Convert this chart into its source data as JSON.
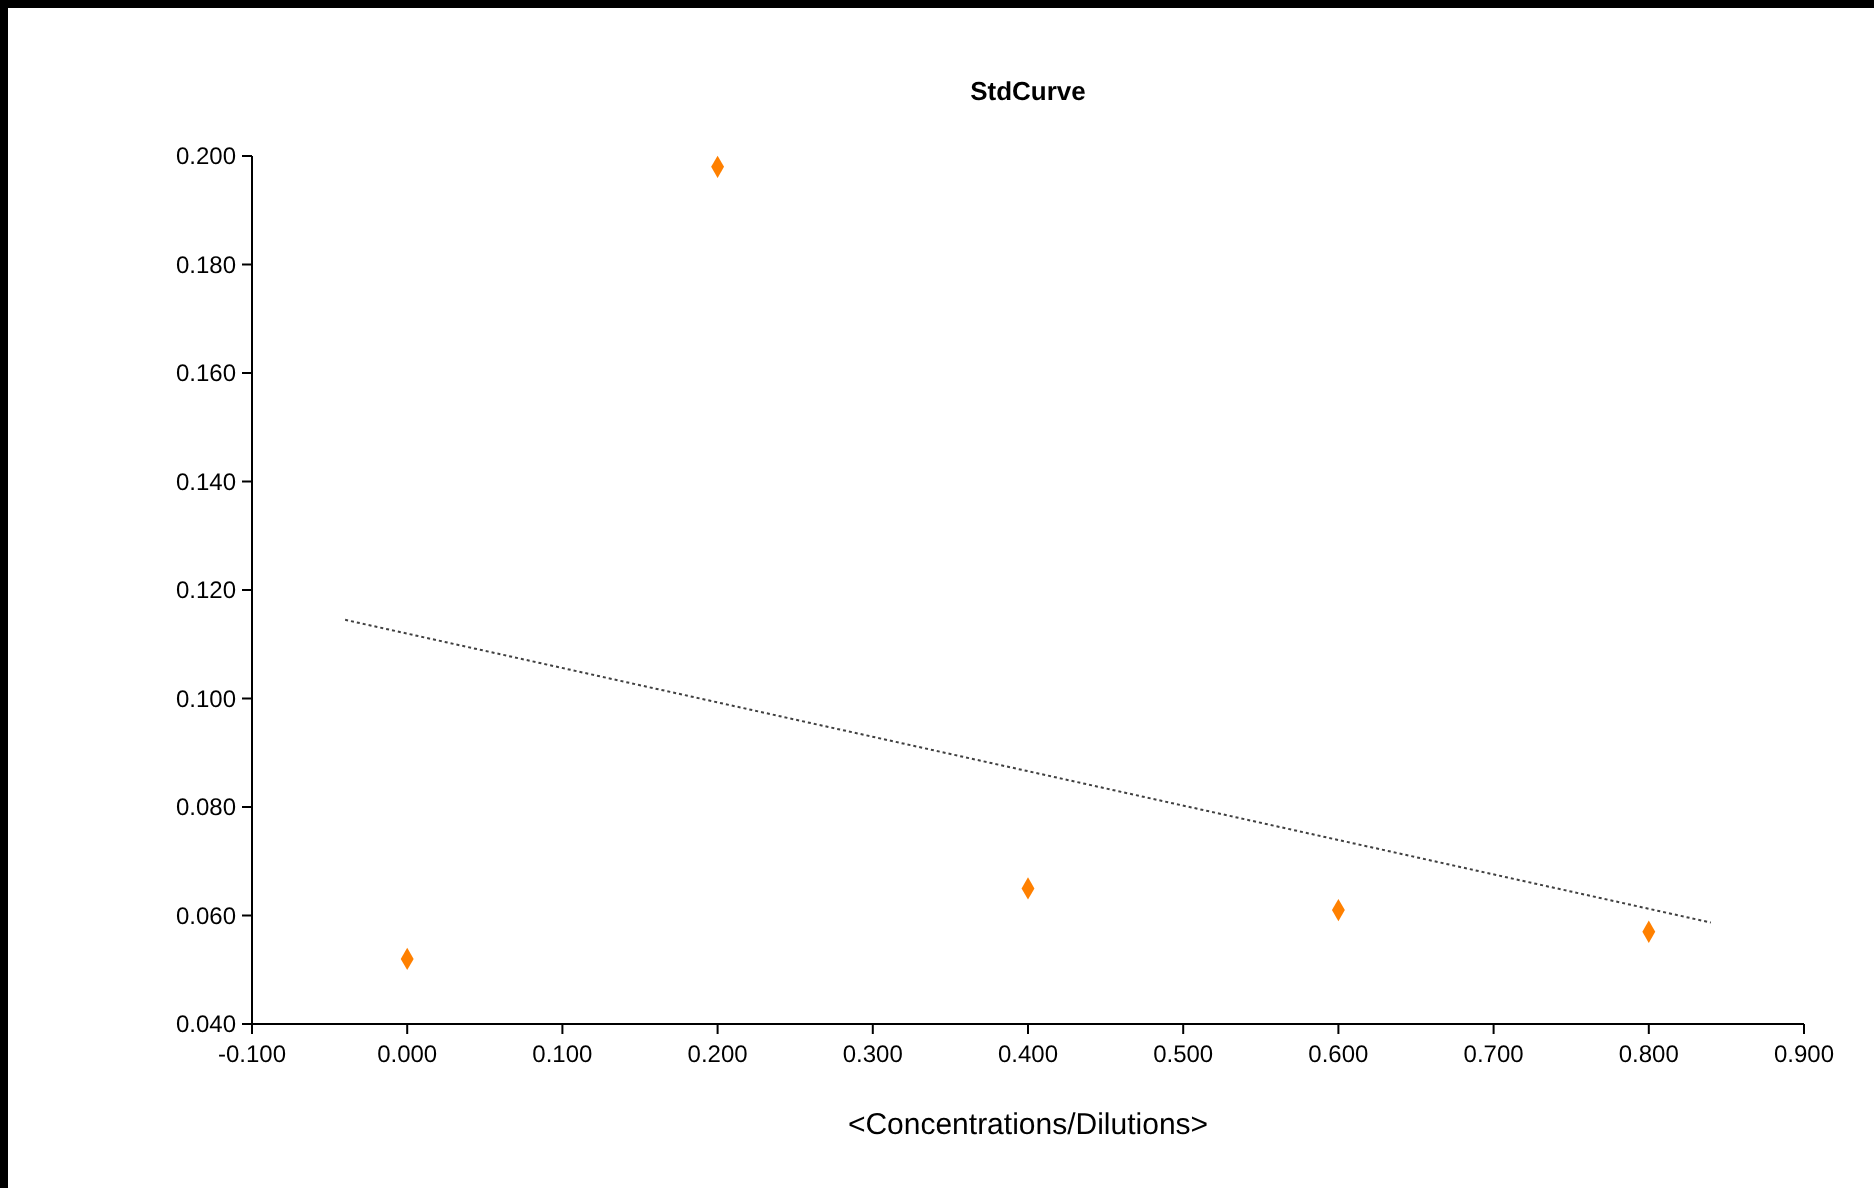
{
  "chart_data": {
    "type": "scatter",
    "title": "StdCurve",
    "xlabel": "<Concentrations/Dilutions>",
    "x": [
      0,
      0.2,
      0.4,
      0.6,
      0.8
    ],
    "series": [
      {
        "color": "#ff8000",
        "values": [
          0.052,
          0.198,
          0.065,
          0.061,
          0.057
        ],
        "marker": "diamond"
      },
      {
        "type": "line",
        "color": "#404040",
        "x": [
          -0.04,
          0.84
        ],
        "values": [
          0.1145,
          0.0587
        ],
        "line_style": "dotted",
        "marker": "none"
      }
    ],
    "xlim": [
      -0.1,
      0.9
    ],
    "xticks": [
      {
        "value": -0.1,
        "label": "-0.100"
      },
      {
        "value": 0,
        "label": "0.000"
      },
      {
        "value": 0.1,
        "label": "0.100"
      },
      {
        "value": 0.2,
        "label": "0.200"
      },
      {
        "value": 0.3,
        "label": "0.300"
      },
      {
        "value": 0.4,
        "label": "0.400"
      },
      {
        "value": 0.5,
        "label": "0.500"
      },
      {
        "value": 0.6,
        "label": "0.600"
      },
      {
        "value": 0.7,
        "label": "0.700"
      },
      {
        "value": 0.8,
        "label": "0.800"
      },
      {
        "value": 0.9,
        "label": "0.900"
      }
    ],
    "ylim": [
      0.04,
      0.2
    ],
    "yticks": [
      {
        "value": 0.04,
        "label": "0.040"
      },
      {
        "value": 0.06,
        "label": "0.060"
      },
      {
        "value": 0.08,
        "label": "0.080"
      },
      {
        "value": 0.1,
        "label": "0.100"
      },
      {
        "value": 0.12,
        "label": "0.120"
      },
      {
        "value": 0.14,
        "label": "0.140"
      },
      {
        "value": 0.16,
        "label": "0.160"
      },
      {
        "value": 0.18,
        "label": "0.180"
      },
      {
        "value": 0.2,
        "label": "0.200"
      }
    ],
    "grid": false
  }
}
